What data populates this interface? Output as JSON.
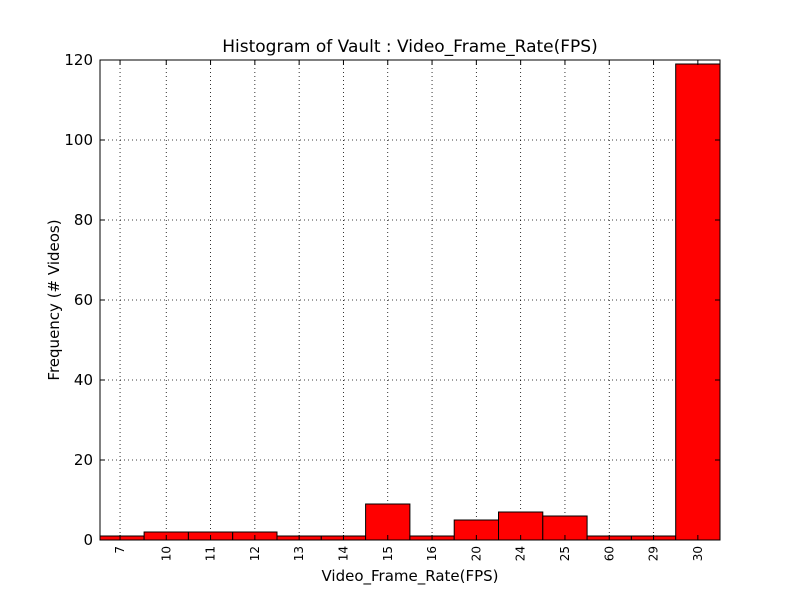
{
  "chart_data": {
    "type": "bar",
    "title": "Histogram of Vault : Video_Frame_Rate(FPS)",
    "xlabel": "Video_Frame_Rate(FPS)",
    "ylabel": "Frequency (# Videos)",
    "categories": [
      "7",
      "10",
      "11",
      "12",
      "13",
      "14",
      "15",
      "16",
      "20",
      "24",
      "25",
      "60",
      "29",
      "30"
    ],
    "values": [
      1,
      2,
      2,
      2,
      1,
      1,
      9,
      1,
      5,
      7,
      6,
      1,
      1,
      119
    ],
    "ylim": [
      0,
      120
    ],
    "yticks": [
      0,
      20,
      40,
      60,
      80,
      100,
      120
    ],
    "grid": true,
    "bar_color": "#ff0000",
    "edge_color": "#000000"
  }
}
